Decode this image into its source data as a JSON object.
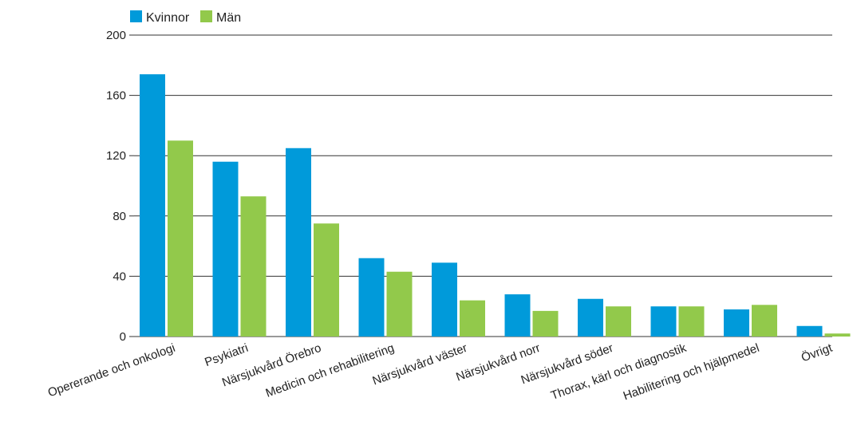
{
  "chart_data": {
    "type": "bar",
    "title": "",
    "xlabel": "",
    "ylabel": "",
    "ylim": [
      0,
      200
    ],
    "yticks": [
      0,
      40,
      80,
      120,
      160,
      200
    ],
    "grid": true,
    "legend_position": "top-left",
    "categories": [
      "Opererande och onkologi",
      "Psykiatri",
      "Närsjukvård Örebro",
      "Medicin och rehabilitering",
      "Närsjukvård väster",
      "Närsjukvård norr",
      "Närsjukvård söder",
      "Thorax, kärl och diagnostik",
      "Habilitering och hjälpmedel",
      "Övrigt"
    ],
    "series": [
      {
        "name": "Kvinnor",
        "color": "#009ada",
        "values": [
          174,
          116,
          125,
          52,
          49,
          28,
          25,
          20,
          18,
          7
        ]
      },
      {
        "name": "Män",
        "color": "#92c94b",
        "values": [
          130,
          93,
          75,
          43,
          24,
          17,
          20,
          20,
          21,
          2
        ]
      }
    ]
  }
}
